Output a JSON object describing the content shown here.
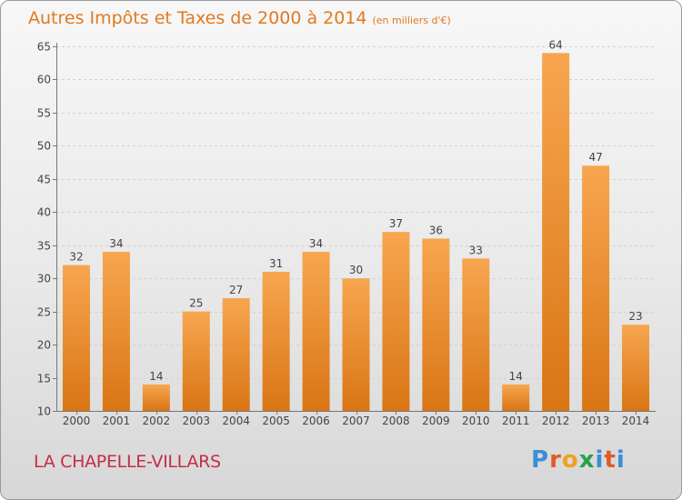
{
  "title": "Autres Impôts et Taxes de 2000 à 2014",
  "subtitle": "(en milliers d'€)",
  "commune": "LA CHAPELLE-VILLARS",
  "logo": {
    "text": "Proxiti",
    "colors": [
      "#3b8fd6",
      "#e05a2a",
      "#f0a020",
      "#2aa14a",
      "#3b8fd6",
      "#e05a2a",
      "#3b8fd6"
    ]
  },
  "colors": {
    "bar_light": "#f7a64f",
    "bar_dark": "#d97515",
    "title": "#e07a1f",
    "commune": "#c42d46"
  },
  "chart_data": {
    "type": "bar",
    "categories": [
      "2000",
      "2001",
      "2002",
      "2003",
      "2004",
      "2005",
      "2006",
      "2007",
      "2008",
      "2009",
      "2010",
      "2011",
      "2012",
      "2013",
      "2014"
    ],
    "values": [
      32,
      34,
      14,
      25,
      27,
      31,
      34,
      30,
      37,
      36,
      33,
      14,
      64,
      47,
      23
    ],
    "ylim": [
      10,
      65
    ],
    "yticks": [
      10,
      15,
      20,
      25,
      30,
      35,
      40,
      45,
      50,
      55,
      60,
      65
    ],
    "grid": true,
    "legend": "none"
  }
}
